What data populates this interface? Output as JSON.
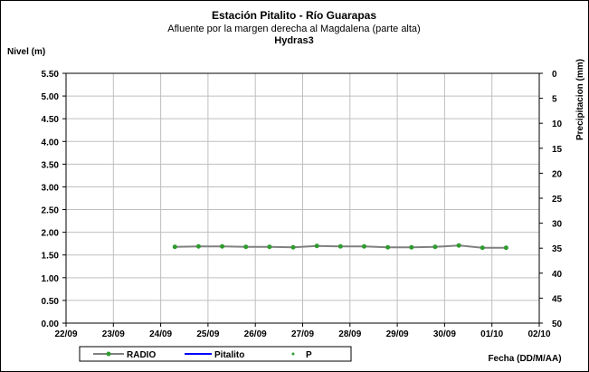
{
  "chart_data": {
    "type": "line",
    "title": "Estación Pitalito  - Río Guarapas",
    "subtitle": "Afluente por la margen derecha al Magdalena (parte alta)",
    "subtitle2": "Hydras3",
    "ylabel": "Nivel (m)",
    "y2label": "Precipitacion (mm)",
    "xlabel": "Fecha (DD/M/AA)",
    "ylim": [
      0,
      5.5
    ],
    "y2lim": [
      0,
      50
    ],
    "y2_reversed": true,
    "x_tick_labels": [
      "22/09",
      "23/09",
      "24/09",
      "25/09",
      "26/09",
      "27/09",
      "28/09",
      "29/09",
      "30/09",
      "01/10",
      "02/10"
    ],
    "y_tick_labels": [
      "0.00",
      "0.50",
      "1.00",
      "1.50",
      "2.00",
      "2.50",
      "3.00",
      "3.50",
      "4.00",
      "4.50",
      "5.00",
      "5.50"
    ],
    "y2_tick_labels": [
      "0",
      "5",
      "10",
      "15",
      "20",
      "25",
      "30",
      "35",
      "40",
      "45",
      "50"
    ],
    "grid": true,
    "legend_position": "bottom",
    "series": [
      {
        "name": "RADIO",
        "color": "#808080",
        "marker_color": "#2e9b2e",
        "x": [
          2.3,
          2.8,
          3.3,
          3.8,
          4.3,
          4.8,
          5.3,
          5.8,
          6.3,
          6.8,
          7.3,
          7.8,
          8.3,
          8.8,
          9.3
        ],
        "values": [
          1.68,
          1.69,
          1.69,
          1.68,
          1.68,
          1.67,
          1.7,
          1.69,
          1.69,
          1.67,
          1.67,
          1.68,
          1.71,
          1.66,
          1.66
        ]
      },
      {
        "name": "Pitalito",
        "color": "#0000ff",
        "x": [],
        "values": []
      },
      {
        "name": "P",
        "color": "#2e9b2e",
        "x": [],
        "values": []
      }
    ]
  }
}
